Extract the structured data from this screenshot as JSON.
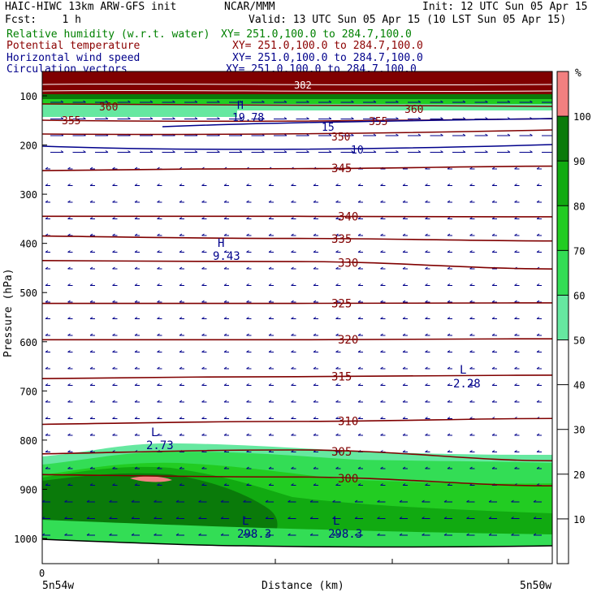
{
  "header": {
    "model": "HAIC-HIWC 13km ARW-GFS init",
    "org": "NCAR/MMM",
    "init": "Init: 12 UTC Sun 05 Apr 15",
    "fcst": "Fcst:    1 h",
    "valid": "Valid: 13 UTC Sun 05 Apr 15 (10 LST Sun 05 Apr 15)"
  },
  "fields": [
    {
      "name": "Relative humidity (w.r.t. water)",
      "xy": "XY= 251.0,100.0 to 284.7,100.0",
      "color": "#008000"
    },
    {
      "name": "Potential temperature",
      "xy": "XY= 251.0,100.0 to 284.7,100.0",
      "color": "#8b0000"
    },
    {
      "name": "Horizontal wind speed",
      "xy": "XY= 251.0,100.0 to 284.7,100.0",
      "color": "#00008b"
    },
    {
      "name": "Circulation vectors",
      "xy": "XY= 251.0,100.0 to 284.7,100.0",
      "color": "#00008b"
    }
  ],
  "axes": {
    "ylabel": "Pressure (hPa)",
    "xlabel": "Distance (km)",
    "x_zero_label": "0",
    "x_left_label": "5n54w",
    "x_right_label": "5n50w",
    "y_ticks": [
      "100",
      "200",
      "300",
      "400",
      "500",
      "600",
      "700",
      "800",
      "900",
      "1000"
    ]
  },
  "colorbar": {
    "unit": "%",
    "levels": [
      10,
      20,
      30,
      40,
      50,
      60,
      70,
      80,
      90,
      100
    ],
    "level_labels": [
      "10",
      "20",
      "30",
      "40",
      "50",
      "60",
      "70",
      "80",
      "90",
      "100"
    ],
    "colors": {
      "50-60": "#66e8a0",
      "60-70": "#33dd55",
      "70-80": "#22cc22",
      "80-90": "#11aa11",
      "90-100": "#0a7a0a",
      "100+": "#f28080"
    }
  },
  "chart_data": {
    "type": "heatmap",
    "x_range": [
      251.0,
      284.7
    ],
    "ylim": [
      1050,
      80
    ],
    "theta_contours": [
      {
        "label": "345",
        "p": [
          252,
          248,
          243
        ]
      },
      {
        "label": "340",
        "p": [
          345,
          345,
          346
        ]
      },
      {
        "label": "335",
        "p": [
          385,
          390,
          395
        ]
      },
      {
        "label": "330",
        "p": [
          435,
          437,
          452
        ]
      },
      {
        "label": "325",
        "p": [
          522,
          522,
          521
        ]
      },
      {
        "label": "320",
        "p": [
          596,
          596,
          594
        ]
      },
      {
        "label": "315",
        "p": [
          675,
          671,
          668
        ]
      },
      {
        "label": "310",
        "p": [
          768,
          762,
          756
        ]
      },
      {
        "label": "305",
        "p": [
          828,
          820,
          842
        ]
      },
      {
        "label": "300",
        "p": [
          870,
          875,
          893
        ]
      }
    ],
    "upper_theta_labels": [
      "360",
      "355",
      "350",
      "382"
    ],
    "wind_labels": [
      "15",
      "10"
    ],
    "extrema": [
      {
        "type": "H",
        "label": "H",
        "value": "19.78"
      },
      {
        "type": "H",
        "label": "H",
        "value": "9.43"
      },
      {
        "type": "L",
        "label": "L",
        "value": "2.28"
      },
      {
        "type": "L",
        "label": "L",
        "value": "2.73"
      },
      {
        "type": "L",
        "label": "L",
        "value": "298.3"
      },
      {
        "type": "L",
        "label": "L",
        "value": "298.3"
      }
    ]
  }
}
